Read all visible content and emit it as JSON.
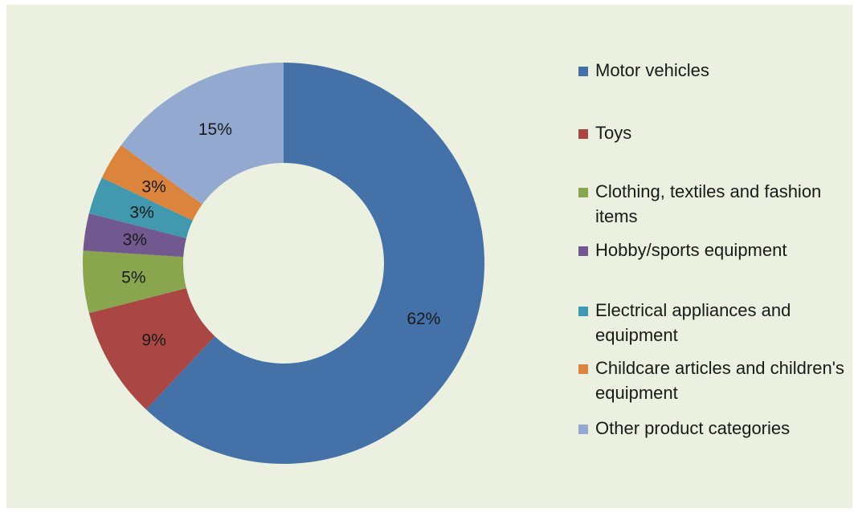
{
  "chart_data": {
    "type": "pie",
    "style": "donut",
    "title": "",
    "legend_position": "right",
    "slices": [
      {
        "label": "Motor vehicles",
        "value": 62,
        "display": "62%",
        "color": "#4472a8"
      },
      {
        "label": "Toys",
        "value": 9,
        "display": "9%",
        "color": "#aa4643"
      },
      {
        "label": "Clothing, textiles and fashion items",
        "value": 5,
        "display": "5%",
        "color": "#89a54e"
      },
      {
        "label": "Hobby/sports equipment",
        "value": 3,
        "display": "3%",
        "color": "#71588f"
      },
      {
        "label": "Electrical appliances and equipment",
        "value": 3,
        "display": "3%",
        "color": "#4198af"
      },
      {
        "label": "Childcare articles and children's equipment",
        "value": 3,
        "display": "3%",
        "color": "#db843d"
      },
      {
        "label": "Other product categories",
        "value": 15,
        "display": "15%",
        "color": "#93a9cf"
      }
    ]
  },
  "colors": {
    "background": "#ebf0e0",
    "label_text": "#1a1a1a"
  }
}
